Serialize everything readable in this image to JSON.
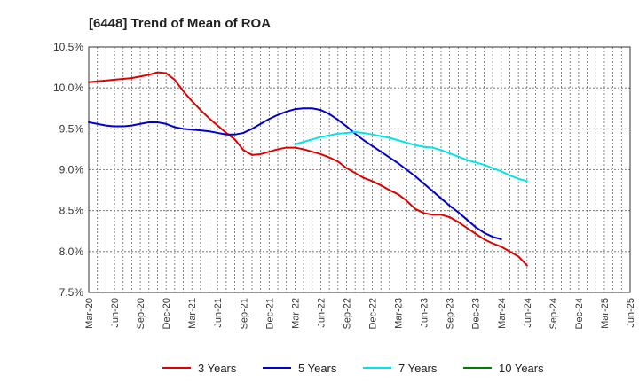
{
  "chart_data": {
    "type": "line",
    "title": "[6448]  Trend of Mean of ROA",
    "xlabel": "",
    "ylabel": "",
    "ylim": [
      7.5,
      10.5
    ],
    "y_ticks": [
      7.5,
      8.0,
      8.5,
      9.0,
      9.5,
      10.0,
      10.5
    ],
    "y_tick_labels": [
      "7.5%",
      "8.0%",
      "8.5%",
      "9.0%",
      "9.5%",
      "10.0%",
      "10.5%"
    ],
    "x_tick_labels": [
      "Mar-20",
      "Jun-20",
      "Sep-20",
      "Dec-20",
      "Mar-21",
      "Jun-21",
      "Sep-21",
      "Dec-21",
      "Mar-22",
      "Jun-22",
      "Sep-22",
      "Dec-22",
      "Mar-23",
      "Jun-23",
      "Sep-23",
      "Dec-23",
      "Mar-24",
      "Jun-24",
      "Sep-24",
      "Dec-24",
      "Mar-25",
      "Jun-25"
    ],
    "grid": true,
    "series": [
      {
        "name": "3 Years",
        "color": "#e00000",
        "start_index": 0,
        "values": [
          10.07,
          10.08,
          10.09,
          10.1,
          10.11,
          10.12,
          10.14,
          10.16,
          10.19,
          10.18,
          10.1,
          9.96,
          9.84,
          9.73,
          9.63,
          9.54,
          9.45,
          9.37,
          9.24,
          9.18,
          9.19,
          9.22,
          9.25,
          9.27,
          9.27,
          9.25,
          9.22,
          9.19,
          9.15,
          9.1,
          9.02,
          8.96,
          8.9,
          8.86,
          8.81,
          8.75,
          8.7,
          8.62,
          8.52,
          8.47,
          8.45,
          8.45,
          8.42,
          8.36,
          8.29,
          8.22,
          8.15,
          8.1,
          8.06,
          8.0,
          7.94,
          7.83
        ]
      },
      {
        "name": "5 Years",
        "color": "#0000cc",
        "start_index": 0,
        "values": [
          9.58,
          9.56,
          9.54,
          9.53,
          9.53,
          9.54,
          9.56,
          9.58,
          9.58,
          9.56,
          9.52,
          9.5,
          9.49,
          9.48,
          9.47,
          9.45,
          9.43,
          9.43,
          9.45,
          9.5,
          9.56,
          9.62,
          9.67,
          9.71,
          9.74,
          9.75,
          9.75,
          9.73,
          9.68,
          9.61,
          9.53,
          9.44,
          9.36,
          9.29,
          9.22,
          9.15,
          9.08,
          9.0,
          8.92,
          8.83,
          8.74,
          8.65,
          8.56,
          8.48,
          8.39,
          8.3,
          8.23,
          8.18,
          8.15
        ]
      },
      {
        "name": "7 Years",
        "color": "#00e5e5",
        "start_index": 24,
        "values": [
          9.31,
          9.34,
          9.37,
          9.4,
          9.42,
          9.44,
          9.45,
          9.46,
          9.45,
          9.43,
          9.41,
          9.39,
          9.36,
          9.33,
          9.3,
          9.28,
          9.27,
          9.24,
          9.2,
          9.16,
          9.12,
          9.09,
          9.06,
          9.02,
          8.98,
          8.93,
          8.89,
          8.86
        ]
      },
      {
        "name": "10 Years",
        "color": "#008000",
        "start_index": 0,
        "values": []
      }
    ],
    "legend_position": "bottom"
  }
}
